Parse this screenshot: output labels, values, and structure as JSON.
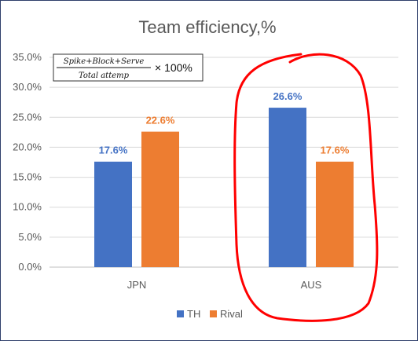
{
  "chart_data": {
    "type": "bar",
    "title": "Team efficiency,%",
    "categories": [
      "JPN",
      "AUS"
    ],
    "series": [
      {
        "name": "TH",
        "values": [
          17.6,
          26.6
        ],
        "labels": [
          "17.6%",
          "26.6%"
        ],
        "color": "#4472C4"
      },
      {
        "name": "Rival",
        "values": [
          22.6,
          17.6
        ],
        "labels": [
          "22.6%",
          "17.6%"
        ],
        "color": "#ED7D31"
      }
    ],
    "ylim": [
      0,
      35
    ],
    "yticks": [
      "0.0%",
      "5.0%",
      "10.0%",
      "15.0%",
      "20.0%",
      "25.0%",
      "30.0%",
      "35.0%"
    ],
    "grid": true,
    "legend_position": "bottom",
    "annotation": {
      "formula_numerator": "Spike+Block+Serve",
      "formula_denominator": "Total attemp",
      "formula_suffix": "× 100%"
    },
    "highlight": {
      "category": "AUS",
      "color": "#FF0000",
      "shape": "hand-drawn loop"
    }
  }
}
